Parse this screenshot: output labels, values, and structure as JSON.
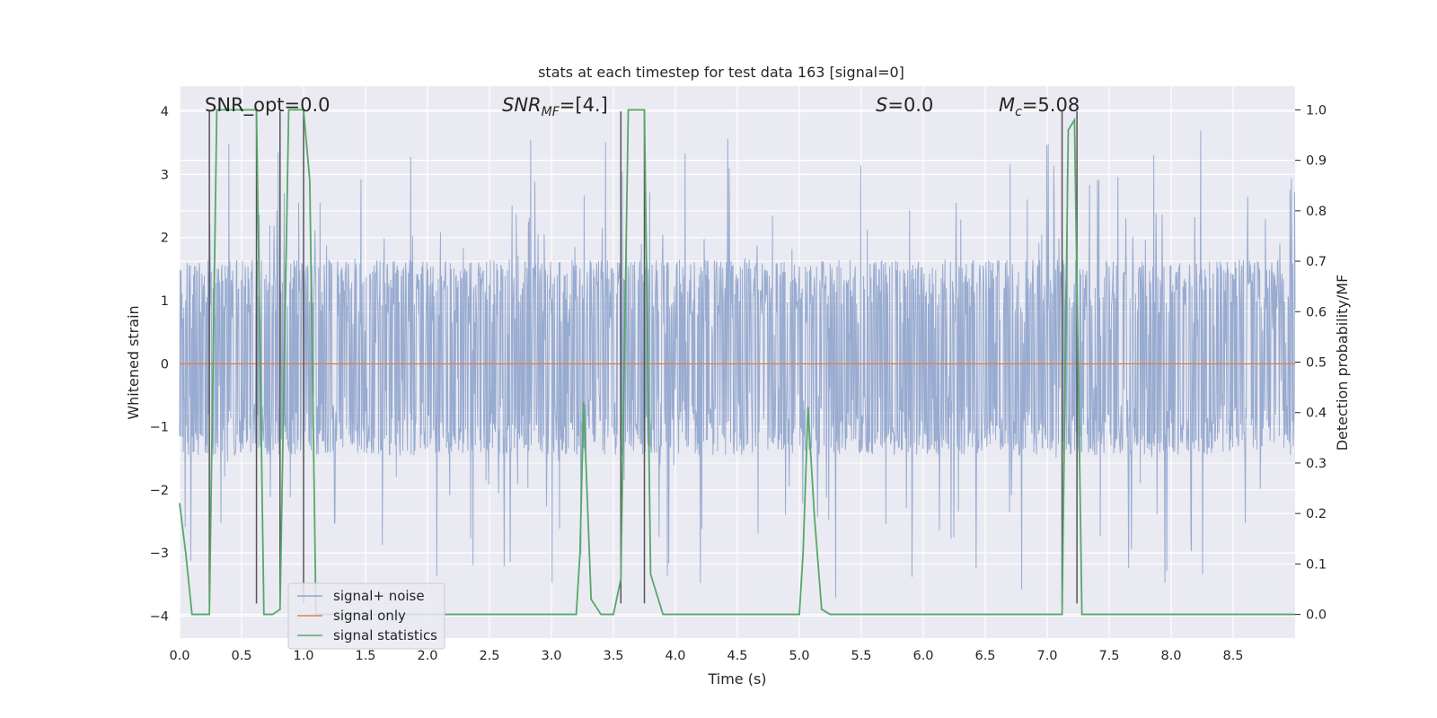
{
  "chart_data": {
    "type": "line",
    "title": "stats at each timestep for test data 163 [signal=0]",
    "xlabel": "Time (s)",
    "ylabel": "Whitened strain",
    "y2label": "Detection probability/MF",
    "xlim": [
      0.0,
      9.0
    ],
    "ylim": [
      -4.35,
      4.4
    ],
    "y2lim": [
      -0.047,
      1.047
    ],
    "xticks": [
      "0.0",
      "0.5",
      "1.0",
      "1.5",
      "2.0",
      "2.5",
      "3.0",
      "3.5",
      "4.0",
      "4.5",
      "5.0",
      "5.5",
      "6.0",
      "6.5",
      "7.0",
      "7.5",
      "8.0",
      "8.5"
    ],
    "xtick_values": [
      0.0,
      0.5,
      1.0,
      1.5,
      2.0,
      2.5,
      3.0,
      3.5,
      4.0,
      4.5,
      5.0,
      5.5,
      6.0,
      6.5,
      7.0,
      7.5,
      8.0,
      8.5
    ],
    "yticks": [
      "4",
      "3",
      "2",
      "1",
      "0",
      "−1",
      "−2",
      "−3",
      "−4"
    ],
    "ytick_values": [
      4,
      3,
      2,
      1,
      0,
      -1,
      -2,
      -3,
      -4
    ],
    "y2ticks": [
      "1.0",
      "0.9",
      "0.8",
      "0.7",
      "0.6",
      "0.5",
      "0.4",
      "0.3",
      "0.2",
      "0.1",
      "0.0"
    ],
    "y2tick_values": [
      1.0,
      0.9,
      0.8,
      0.7,
      0.6,
      0.5,
      0.4,
      0.3,
      0.2,
      0.1,
      0.0
    ],
    "annotations": {
      "snr_opt": "SNR_opt=0.0",
      "snr_mf_prefix": "SNR",
      "snr_mf_sub": "MF",
      "snr_mf_value": "=[4.]",
      "s_prefix": "S",
      "s_value": "=0.0",
      "mc_prefix": "M",
      "mc_sub": "c",
      "mc_value": "=5.08"
    },
    "legend": {
      "placement": "lower-left",
      "entries": [
        "signal+ noise",
        "signal only",
        "signal statistics"
      ]
    },
    "colors": {
      "noise": "#8fa4cc",
      "signal": "#dd8452",
      "stats": "#55a868",
      "vlines": "#555555",
      "background": "#eaeaf2",
      "grid": "#ffffff"
    },
    "noise": {
      "t_start": 0.0,
      "t_end": 9.0,
      "core_band": [
        -1.45,
        1.65
      ],
      "peak_max": 3.8,
      "peak_min": -3.8
    },
    "signal_only": {
      "value": 0.0
    },
    "vertical_lines": [
      0.24,
      0.62,
      0.81,
      1.0,
      3.56,
      3.75,
      7.12,
      7.24
    ],
    "series": [
      {
        "name": "signal statistics",
        "axis": "right",
        "x": [
          0.0,
          0.05,
          0.1,
          0.2,
          0.24,
          0.3,
          0.62,
          0.68,
          0.75,
          0.81,
          0.88,
          1.0,
          1.05,
          1.1,
          3.2,
          3.23,
          3.26,
          3.32,
          3.4,
          3.5,
          3.56,
          3.62,
          3.75,
          3.8,
          3.9,
          5.0,
          5.03,
          5.07,
          5.12,
          5.18,
          5.25,
          6.8,
          7.12,
          7.17,
          7.22,
          7.28,
          9.0
        ],
        "values": [
          0.22,
          0.12,
          0.0,
          0.0,
          0.0,
          1.0,
          1.0,
          0.0,
          0.0,
          0.01,
          1.0,
          1.0,
          0.86,
          0.0,
          0.0,
          0.12,
          0.42,
          0.03,
          0.0,
          0.0,
          0.07,
          1.0,
          1.0,
          0.08,
          0.0,
          0.0,
          0.12,
          0.41,
          0.2,
          0.01,
          0.0,
          0.0,
          0.0,
          0.96,
          0.98,
          0.0,
          0.0
        ]
      }
    ]
  }
}
